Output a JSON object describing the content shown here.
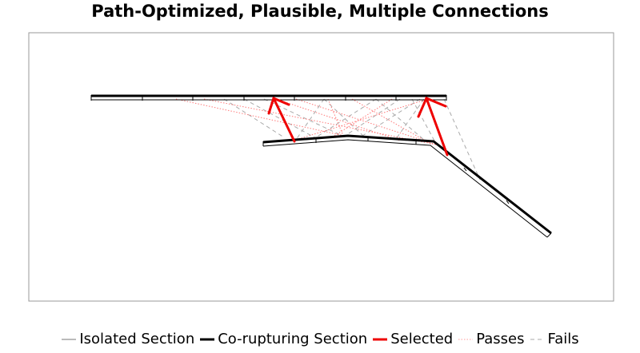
{
  "title": "Path-Optimized, Plausible, Multiple Connections",
  "legend": [
    {
      "label": "Isolated Section",
      "color": "#bbbbbb",
      "style": "solid",
      "width": 2
    },
    {
      "label": "Co-rupturing Section",
      "color": "#000000",
      "style": "solid",
      "width": 3
    },
    {
      "label": "Selected",
      "color": "#ee0000",
      "style": "solid",
      "width": 3
    },
    {
      "label": "Passes",
      "color": "#ff9a9a",
      "style": "dotted",
      "width": 1
    },
    {
      "label": "Fails",
      "color": "#aaaaaa",
      "style": "dashed",
      "width": 1
    }
  ],
  "colors": {
    "frame": "#999999",
    "section": "#000000",
    "selected": "#ee0000",
    "passes": "#ff7a7a",
    "fails": "#aaaaaa"
  }
}
